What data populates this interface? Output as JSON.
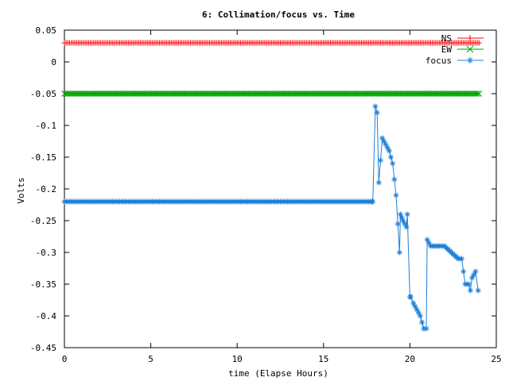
{
  "chart_data": {
    "type": "line",
    "title": "6: Collimation/focus vs. Time",
    "xlabel": "time (Elapse Hours)",
    "ylabel": "Volts",
    "xlim": [
      0,
      25
    ],
    "ylim": [
      -0.45,
      0.05
    ],
    "xticks": [
      0,
      5,
      10,
      15,
      20,
      25
    ],
    "xtick_labels": [
      "0",
      "5",
      "10",
      "15",
      "20",
      "25"
    ],
    "yticks": [
      0.05,
      0,
      -0.05,
      -0.1,
      -0.15,
      -0.2,
      -0.25,
      -0.3,
      -0.35,
      -0.4,
      -0.45
    ],
    "ytick_labels": [
      "0.05",
      "0",
      "-0.05",
      "-0.1",
      "-0.15",
      "-0.2",
      "-0.25",
      "-0.3",
      "-0.35",
      "-0.4",
      "-0.45"
    ],
    "grid": false,
    "legend_position": "top-right",
    "series": [
      {
        "name": "NS",
        "color": "#ff0000",
        "marker": "plus",
        "x": [
          0,
          24
        ],
        "y": [
          0.03,
          0.03
        ]
      },
      {
        "name": "EW",
        "color": "#00a000",
        "marker": "cross",
        "x": [
          0,
          24
        ],
        "y": [
          -0.05,
          -0.05
        ]
      },
      {
        "name": "focus",
        "color": "#1e7fd8",
        "marker": "star",
        "x": [
          0,
          17.8,
          17.85,
          18.0,
          18.1,
          18.2,
          18.4,
          18.6,
          18.8,
          19.0,
          19.2,
          19.4,
          19.45,
          19.6,
          19.8,
          19.85,
          20.0,
          20.05,
          20.2,
          20.4,
          20.6,
          20.8,
          20.95,
          21.0,
          21.2,
          21.6,
          22.0,
          22.4,
          22.8,
          23.0,
          23.2,
          23.4,
          23.5,
          23.6,
          23.8,
          23.95
        ],
        "y": [
          -0.22,
          -0.22,
          -0.22,
          -0.07,
          -0.08,
          -0.19,
          -0.12,
          -0.13,
          -0.14,
          -0.16,
          -0.21,
          -0.3,
          -0.24,
          -0.25,
          -0.26,
          -0.24,
          -0.37,
          -0.37,
          -0.38,
          -0.39,
          -0.4,
          -0.42,
          -0.42,
          -0.28,
          -0.29,
          -0.29,
          -0.29,
          -0.3,
          -0.31,
          -0.31,
          -0.35,
          -0.35,
          -0.36,
          -0.34,
          -0.33,
          -0.36
        ]
      }
    ]
  }
}
